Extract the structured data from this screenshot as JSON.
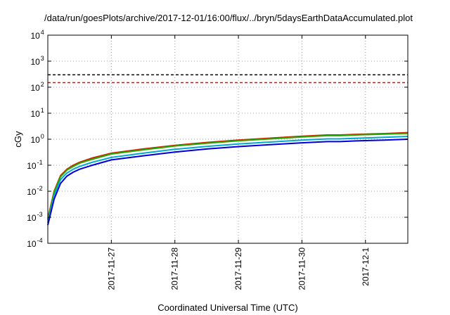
{
  "chart_data": {
    "type": "line",
    "title": "/data/run/goesPlots/archive/2017-12-01/16:00/flux/../bryn/5daysEarthDataAccumulated.plot",
    "xlabel": "Coordinated Universal Time (UTC)",
    "ylabel": "cGy",
    "yscale": "log",
    "ylim": [
      0.0001,
      10000
    ],
    "xlim": [
      "2017-11-26 00:00",
      "2017-12-01 16:00"
    ],
    "y_ticks": [
      {
        "base": "10",
        "exp": "-4",
        "value": 0.0001
      },
      {
        "base": "10",
        "exp": "-3",
        "value": 0.001
      },
      {
        "base": "10",
        "exp": "-2",
        "value": 0.01
      },
      {
        "base": "10",
        "exp": "-1",
        "value": 0.1
      },
      {
        "base": "10",
        "exp": "0",
        "value": 1
      },
      {
        "base": "10",
        "exp": "1",
        "value": 10
      },
      {
        "base": "10",
        "exp": "2",
        "value": 100
      },
      {
        "base": "10",
        "exp": "3",
        "value": 1000
      },
      {
        "base": "10",
        "exp": "4",
        "value": 10000
      }
    ],
    "x_ticks": [
      {
        "label": "2017-11-27",
        "value": "2017-11-27 00:00"
      },
      {
        "label": "2017-11-28",
        "value": "2017-11-28 00:00"
      },
      {
        "label": "2017-11-29",
        "value": "2017-11-29 00:00"
      },
      {
        "label": "2017-11-30",
        "value": "2017-11-30 00:00"
      },
      {
        "label": "2017-12-1",
        "value": "2017-12-01 00:00"
      }
    ],
    "grid": true,
    "hlines": [
      {
        "y": 300,
        "color": "#000000",
        "style": "dashed"
      },
      {
        "y": 150,
        "color": "#ff0000",
        "style": "dashed"
      }
    ],
    "x": [
      "2017-11-26 00:00",
      "2017-11-26 02:24",
      "2017-11-26 04:48",
      "2017-11-26 07:12",
      "2017-11-26 09:36",
      "2017-11-26 12:00",
      "2017-11-26 16:48",
      "2017-11-27 00:00",
      "2017-11-27 12:00",
      "2017-11-28 00:00",
      "2017-11-28 12:00",
      "2017-11-29 00:00",
      "2017-11-29 12:00",
      "2017-11-30 00:00",
      "2017-11-30 09:36",
      "2017-11-30 14:24",
      "2017-11-30 21:36",
      "2017-12-01 07:12",
      "2017-12-01 16:00"
    ],
    "series": [
      {
        "color": "#cc2200",
        "values": [
          0.0009,
          0.01,
          0.04,
          0.07,
          0.1,
          0.13,
          0.19,
          0.29,
          0.42,
          0.58,
          0.75,
          0.93,
          1.1,
          1.3,
          1.45,
          1.45,
          1.55,
          1.65,
          1.8
        ]
      },
      {
        "color": "#22aa00",
        "values": [
          0.0008,
          0.009,
          0.036,
          0.065,
          0.09,
          0.12,
          0.17,
          0.27,
          0.39,
          0.55,
          0.7,
          0.87,
          1.03,
          1.22,
          1.37,
          1.37,
          1.47,
          1.57,
          1.68
        ]
      },
      {
        "color": "#00aacc",
        "values": [
          0.0006,
          0.007,
          0.028,
          0.05,
          0.07,
          0.09,
          0.13,
          0.2,
          0.29,
          0.41,
          0.53,
          0.66,
          0.78,
          0.92,
          1.03,
          1.03,
          1.1,
          1.18,
          1.28
        ]
      },
      {
        "color": "#0000dd",
        "values": [
          0.0005,
          0.005,
          0.02,
          0.038,
          0.054,
          0.07,
          0.1,
          0.16,
          0.23,
          0.32,
          0.42,
          0.52,
          0.62,
          0.73,
          0.81,
          0.81,
          0.87,
          0.93,
          1.0
        ]
      }
    ]
  }
}
